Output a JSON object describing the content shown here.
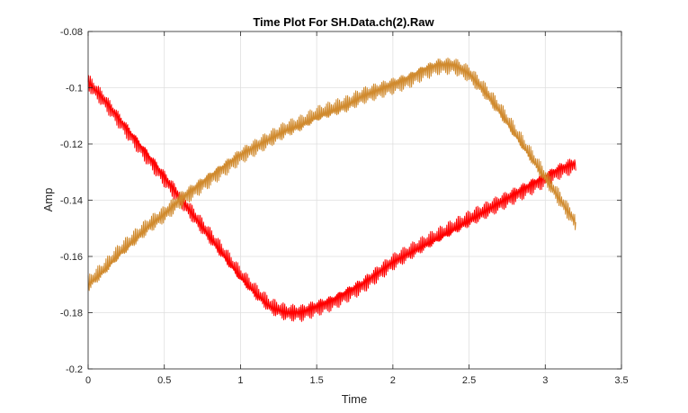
{
  "chart_data": {
    "type": "line",
    "title": "Time Plot For SH.Data.ch(2).Raw",
    "xlabel": "Time",
    "ylabel": "Amp",
    "xlim": [
      0,
      3.5
    ],
    "ylim": [
      -0.2,
      -0.08
    ],
    "xticks": [
      0,
      0.5,
      1,
      1.5,
      2,
      2.5,
      3,
      3.5
    ],
    "yticks": [
      -0.2,
      -0.18,
      -0.16,
      -0.14,
      -0.12,
      -0.1,
      -0.08
    ],
    "xtick_labels": [
      "0",
      "0.5",
      "1",
      "1.5",
      "2",
      "2.5",
      "3",
      "3.5"
    ],
    "ytick_labels": [
      "-0.2",
      "-0.18",
      "-0.16",
      "-0.14",
      "-0.12",
      "-0.1",
      "-0.08"
    ],
    "grid": true,
    "noise_amplitude": 0.0035,
    "series": [
      {
        "color": "#ff0000",
        "x": [
          0,
          0.1,
          0.2,
          0.3,
          0.4,
          0.5,
          0.6,
          0.7,
          0.8,
          0.9,
          1.0,
          1.1,
          1.2,
          1.3,
          1.4,
          1.5,
          1.6,
          1.7,
          1.8,
          1.9,
          2.0,
          2.1,
          2.2,
          2.3,
          2.4,
          2.5,
          2.6,
          2.7,
          2.8,
          2.9,
          3.0,
          3.1,
          3.2
        ],
        "values": [
          -0.098,
          -0.104,
          -0.111,
          -0.118,
          -0.125,
          -0.132,
          -0.139,
          -0.146,
          -0.153,
          -0.16,
          -0.167,
          -0.173,
          -0.178,
          -0.18,
          -0.18,
          -0.178,
          -0.176,
          -0.173,
          -0.17,
          -0.166,
          -0.162,
          -0.159,
          -0.156,
          -0.153,
          -0.15,
          -0.147,
          -0.144,
          -0.141,
          -0.138,
          -0.135,
          -0.132,
          -0.129,
          -0.127
        ]
      },
      {
        "color": "#d08a2e",
        "x": [
          0,
          0.1,
          0.2,
          0.3,
          0.4,
          0.5,
          0.6,
          0.7,
          0.8,
          0.9,
          1.0,
          1.1,
          1.2,
          1.3,
          1.4,
          1.5,
          1.6,
          1.7,
          1.8,
          1.9,
          2.0,
          2.1,
          2.2,
          2.3,
          2.4,
          2.5,
          2.6,
          2.7,
          2.8,
          2.9,
          3.0,
          3.1,
          3.2
        ],
        "values": [
          -0.17,
          -0.165,
          -0.159,
          -0.154,
          -0.149,
          -0.145,
          -0.14,
          -0.136,
          -0.132,
          -0.128,
          -0.124,
          -0.121,
          -0.118,
          -0.115,
          -0.113,
          -0.11,
          -0.108,
          -0.106,
          -0.103,
          -0.101,
          -0.099,
          -0.097,
          -0.094,
          -0.092,
          -0.092,
          -0.095,
          -0.101,
          -0.108,
          -0.116,
          -0.124,
          -0.132,
          -0.14,
          -0.148
        ]
      }
    ]
  }
}
